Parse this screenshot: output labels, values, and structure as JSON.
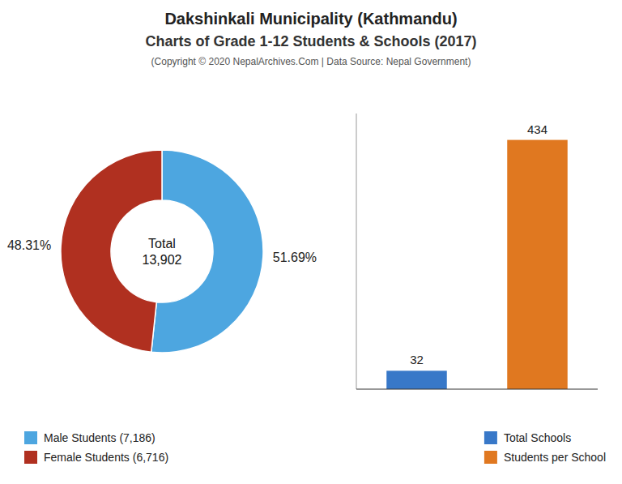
{
  "title": "Dakshinkali Municipality (Kathmandu)",
  "subtitle": "Charts of Grade 1-12 Students & Schools (2017)",
  "annotations": [
    "(Copyright © 2020 NepalArchives.Com | Data Source: Nepal Government)"
  ],
  "chart_data": [
    {
      "type": "pie",
      "categories": [
        "Male Students (7,186)",
        "Female Students (6,716)"
      ],
      "values": [
        51.69,
        48.31
      ],
      "value_labels": [
        "51.69%",
        "48.31%"
      ],
      "colors": [
        "#4da6e0",
        "#b03020"
      ],
      "data_labels": true,
      "annotations": [
        "Total\n13,902"
      ],
      "legend": "lower left"
    },
    {
      "type": "bar",
      "categories": [
        "Total Schools",
        "Students per School"
      ],
      "values": [
        32,
        434
      ],
      "colors": [
        "#3878c8",
        "#e07820"
      ],
      "ylim": [
        0,
        480
      ],
      "tick_labels": false,
      "data_labels": true,
      "legend": "lower right"
    }
  ]
}
